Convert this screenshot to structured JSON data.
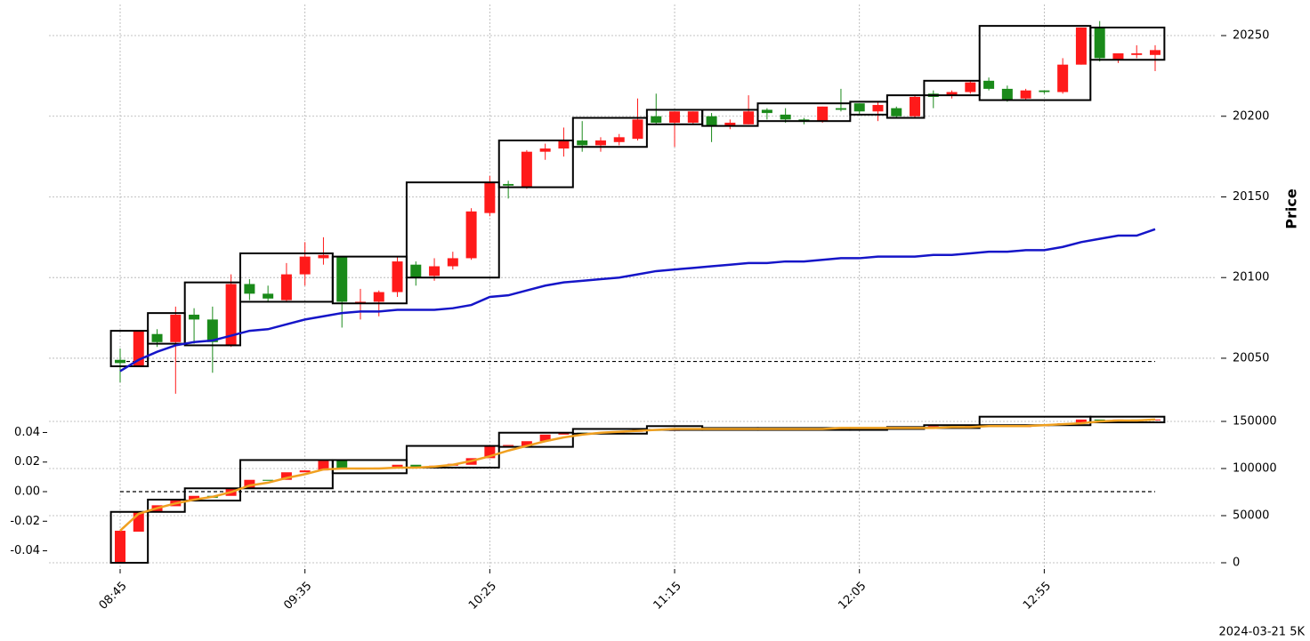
{
  "chart_data": [
    {
      "type": "candlestick",
      "ylabel": "Price",
      "ylim": [
        20015.8,
        20269.3
      ],
      "yticks": [
        20050,
        20100,
        20150,
        20200,
        20250
      ],
      "grid": true,
      "up_color": "#ff1a1a",
      "down_color": "#1a8a1a",
      "categories": [
        "08:45",
        null,
        null,
        null,
        null,
        null,
        null,
        null,
        null,
        null,
        "09:35",
        null,
        null,
        null,
        null,
        null,
        null,
        null,
        null,
        null,
        "10:25",
        null,
        null,
        null,
        null,
        null,
        null,
        null,
        null,
        null,
        "11:15",
        null,
        null,
        null,
        null,
        null,
        null,
        null,
        null,
        null,
        "12:05",
        null,
        null,
        null,
        null,
        null,
        null,
        null,
        null,
        null,
        "12:55",
        null,
        null,
        null,
        null,
        null,
        null
      ],
      "series": [
        {
          "open": [
            20049,
            20045,
            20065,
            20060,
            20077,
            20074,
            20058,
            20096,
            20090,
            20086,
            20102,
            20112,
            20113,
            20084,
            20085,
            20091,
            20108,
            20101,
            20107,
            20112,
            20140,
            20158,
            20156,
            20178,
            20180,
            20185,
            20182,
            20184,
            20186,
            20200,
            20196,
            20196,
            20200,
            20194,
            20195,
            20204,
            20201,
            20198,
            20197,
            20205,
            20208,
            20203,
            20205,
            20200,
            20214,
            20213,
            20215,
            20222,
            20217,
            20211,
            20216,
            20215,
            20232,
            20255,
            20235,
            20238,
            20238
          ],
          "high": [
            20056,
            20067,
            20068,
            20082,
            20081,
            20082,
            20102,
            20099,
            20095,
            20109,
            20122,
            20125,
            20113,
            20093,
            20092,
            20113,
            20110,
            20112,
            20116,
            20143,
            20163,
            20160,
            20179,
            20183,
            20193,
            20197,
            20187,
            20189,
            20211,
            20214,
            20203,
            20203,
            20202,
            20198,
            20213,
            20205,
            20205,
            20199,
            20206,
            20217,
            20208,
            20209,
            20206,
            20213,
            20216,
            20216,
            20222,
            20224,
            20219,
            20217,
            20216,
            20236,
            20255,
            20259,
            20239,
            20244,
            20244
          ],
          "low": [
            20035,
            20045,
            20057,
            20028,
            20059,
            20041,
            20057,
            20086,
            20085,
            20085,
            20095,
            20108,
            20069,
            20074,
            20076,
            20088,
            20095,
            20098,
            20105,
            20111,
            20138,
            20149,
            20155,
            20173,
            20175,
            20178,
            20178,
            20182,
            20185,
            20195,
            20181,
            20195,
            20184,
            20192,
            20195,
            20198,
            20196,
            20195,
            20196,
            20203,
            20201,
            20197,
            20199,
            20199,
            20205,
            20211,
            20214,
            20216,
            20209,
            20210,
            20214,
            20214,
            20232,
            20234,
            20233,
            20236,
            20228
          ],
          "close": [
            20047,
            20067,
            20060,
            20077,
            20074,
            20060,
            20096,
            20090,
            20087,
            20102,
            20113,
            20114,
            20085,
            20085,
            20091,
            20110,
            20100,
            20107,
            20112,
            20141,
            20159,
            20157,
            20178,
            20180,
            20185,
            20182,
            20185,
            20187,
            20198,
            20196,
            20203,
            20203,
            20194,
            20196,
            20203,
            20202,
            20198,
            20197,
            20206,
            20204,
            20203,
            20207,
            20200,
            20212,
            20212,
            20215,
            20221,
            20217,
            20210,
            20216,
            20215,
            20232,
            20255,
            20236,
            20239,
            20239,
            20241
          ]
        }
      ],
      "line": {
        "color": "#1515c8",
        "values": [
          20042,
          20049,
          20054,
          20058,
          20060,
          20061,
          20064,
          20067,
          20068,
          20071,
          20074,
          20076,
          20078,
          20079,
          20079,
          20080,
          20080,
          20080,
          20081,
          20083,
          20088,
          20089,
          20092,
          20095,
          20097,
          20098,
          20099,
          20100,
          20102,
          20104,
          20105,
          20106,
          20107,
          20108,
          20109,
          20109,
          20110,
          20110,
          20111,
          20112,
          20112,
          20113,
          20113,
          20113,
          20114,
          20114,
          20115,
          20116,
          20116,
          20117,
          20117,
          20119,
          20122,
          20124,
          20126,
          20126,
          20130
        ]
      },
      "ref_line": 20048,
      "boxes": [
        {
          "start": 0,
          "end": 1,
          "high": 20067,
          "low": 20045
        },
        {
          "start": 2,
          "end": 3,
          "high": 20078,
          "low": 20059
        },
        {
          "start": 4,
          "end": 6,
          "high": 20097,
          "low": 20058
        },
        {
          "start": 7,
          "end": 11,
          "high": 20115,
          "low": 20085
        },
        {
          "start": 12,
          "end": 15,
          "high": 20113,
          "low": 20084
        },
        {
          "start": 16,
          "end": 20,
          "high": 20159,
          "low": 20100
        },
        {
          "start": 21,
          "end": 24,
          "high": 20185,
          "low": 20156
        },
        {
          "start": 25,
          "end": 28,
          "high": 20199,
          "low": 20181
        },
        {
          "start": 29,
          "end": 31,
          "high": 20204,
          "low": 20195
        },
        {
          "start": 32,
          "end": 34,
          "high": 20204,
          "low": 20194
        },
        {
          "start": 35,
          "end": 39,
          "high": 20208,
          "low": 20197
        },
        {
          "start": 40,
          "end": 41,
          "high": 20209,
          "low": 20201
        },
        {
          "start": 42,
          "end": 43,
          "high": 20213,
          "low": 20199
        },
        {
          "start": 44,
          "end": 46,
          "high": 20222,
          "low": 20213
        },
        {
          "start": 47,
          "end": 52,
          "high": 20256,
          "low": 20210
        },
        {
          "start": 53,
          "end": 56,
          "high": 20255,
          "low": 20235
        }
      ]
    },
    {
      "type": "candlestick",
      "ylim": [
        -0.0523,
        0.0511
      ],
      "yticks": [
        -0.04,
        -0.02,
        {
          "value": 0,
          "label": "0.00"
        },
        0.02,
        0.04
      ],
      "y2lim": [
        -6600,
        155660
      ],
      "y2ticks": [
        0,
        50000,
        100000,
        150000
      ],
      "grid": true,
      "up_color": "#ff1a1a",
      "down_color": "#1a8a1a",
      "categories": [
        "08:45",
        null,
        null,
        null,
        null,
        null,
        null,
        null,
        null,
        null,
        "09:35",
        null,
        null,
        null,
        null,
        null,
        null,
        null,
        null,
        null,
        "10:25",
        null,
        null,
        null,
        null,
        null,
        null,
        null,
        null,
        null,
        "11:15",
        null,
        null,
        null,
        null,
        null,
        null,
        null,
        null,
        null,
        "12:05",
        null,
        null,
        null,
        null,
        null,
        null,
        null,
        null,
        null,
        "12:55",
        null,
        null,
        null,
        null,
        null,
        null
      ],
      "series": [
        {
          "axis": "y2",
          "open": [
            0,
            33000,
            54000,
            60000,
            66000,
            71000,
            71000,
            79000,
            88000,
            88000,
            96000,
            98000,
            109000,
            99000,
            100000,
            100000,
            104000,
            102000,
            103000,
            104000,
            111000,
            124000,
            124000,
            129000,
            136000,
            138000,
            137000,
            138000,
            139000,
            141000,
            140000,
            141000,
            142000,
            141000,
            142000,
            143000,
            142000,
            141000,
            142000,
            143000,
            142000,
            142000,
            143000,
            142000,
            144000,
            145000,
            144000,
            146000,
            145000,
            144000,
            145000,
            146000,
            148000,
            152000,
            151000,
            152000,
            151000
          ],
          "close": [
            34000,
            54000,
            61000,
            66000,
            71000,
            69000,
            79000,
            88000,
            87000,
            96000,
            98000,
            108000,
            99000,
            100000,
            101000,
            104000,
            102000,
            103000,
            105000,
            111000,
            124000,
            125000,
            129000,
            136000,
            138000,
            137000,
            138000,
            139000,
            141000,
            140000,
            142000,
            142000,
            141000,
            142000,
            143000,
            142000,
            141000,
            142000,
            143000,
            142000,
            143000,
            143000,
            142000,
            144000,
            145000,
            144000,
            146000,
            145000,
            144000,
            146000,
            146000,
            148000,
            152000,
            151000,
            152000,
            151000,
            152000
          ]
        }
      ],
      "line": {
        "color": "#f0a020",
        "axis": "y2",
        "values": [
          34000,
          52000,
          58000,
          63000,
          67000,
          70000,
          75000,
          82000,
          85000,
          90000,
          94000,
          99000,
          100000,
          100000,
          100000,
          101000,
          101000,
          102000,
          104000,
          108000,
          113000,
          119000,
          124000,
          129000,
          133000,
          136000,
          138000,
          139000,
          140000,
          141000,
          142000,
          142000,
          142000,
          142000,
          142000,
          142000,
          142000,
          142000,
          142000,
          143000,
          143000,
          143000,
          143000,
          143000,
          143000,
          144000,
          144000,
          145000,
          145000,
          145000,
          146000,
          147000,
          148000,
          150000,
          151000,
          151000,
          152000
        ]
      },
      "ref_line": 0,
      "boxes": [
        {
          "start": 0,
          "end": 1,
          "high": 54000,
          "low": 0
        },
        {
          "start": 2,
          "end": 3,
          "high": 67000,
          "low": 54000
        },
        {
          "start": 4,
          "end": 6,
          "high": 79000,
          "low": 66000
        },
        {
          "start": 7,
          "end": 11,
          "high": 109000,
          "low": 79000
        },
        {
          "start": 12,
          "end": 15,
          "high": 109000,
          "low": 95000
        },
        {
          "start": 16,
          "end": 20,
          "high": 124000,
          "low": 101000
        },
        {
          "start": 21,
          "end": 24,
          "high": 138000,
          "low": 123000
        },
        {
          "start": 25,
          "end": 28,
          "high": 142000,
          "low": 137000
        },
        {
          "start": 29,
          "end": 31,
          "high": 145000,
          "low": 141000
        },
        {
          "start": 32,
          "end": 34,
          "high": 143000,
          "low": 141000
        },
        {
          "start": 35,
          "end": 39,
          "high": 143000,
          "low": 141000
        },
        {
          "start": 40,
          "end": 41,
          "high": 143000,
          "low": 141000
        },
        {
          "start": 42,
          "end": 43,
          "high": 144000,
          "low": 142000
        },
        {
          "start": 44,
          "end": 46,
          "high": 146000,
          "low": 143000
        },
        {
          "start": 47,
          "end": 52,
          "high": 155000,
          "low": 146000
        },
        {
          "start": 53,
          "end": 56,
          "high": 155000,
          "low": 149000
        }
      ]
    }
  ],
  "footer": "2024-03-21 5K"
}
